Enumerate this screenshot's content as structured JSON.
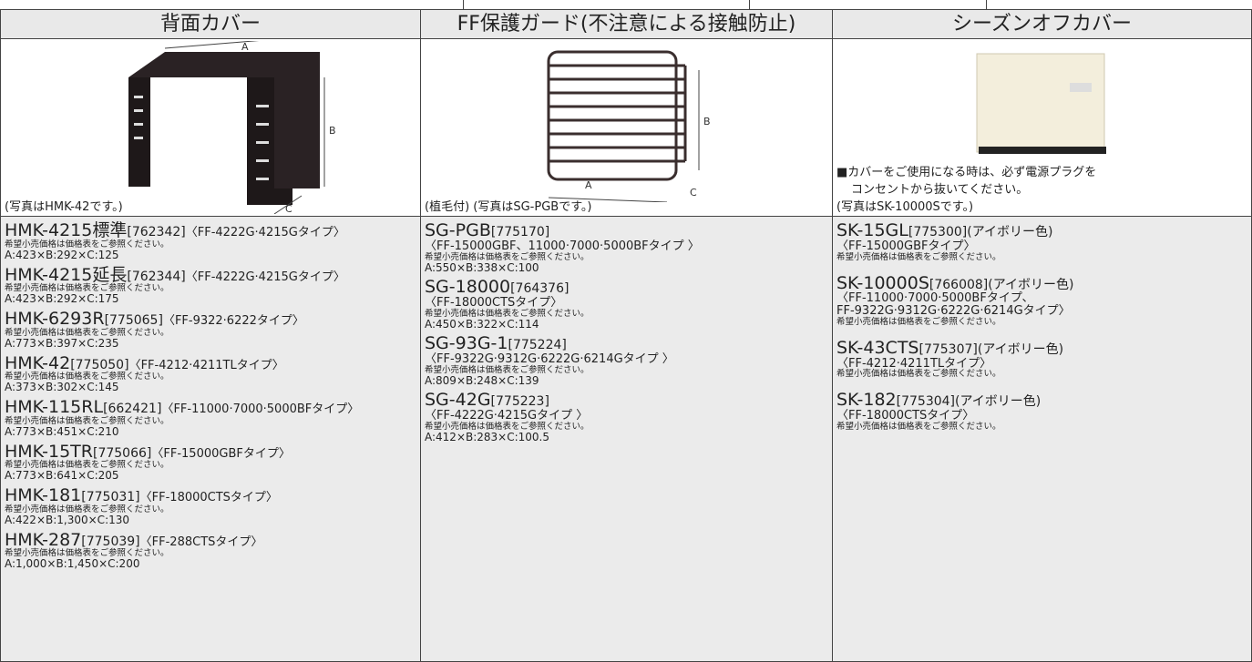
{
  "columns": [
    {
      "header": "背面カバー",
      "caption": "(写真はHMK-42です。)",
      "dim_labels": [
        "A",
        "B",
        "C"
      ],
      "items": [
        {
          "model": "HMK-4215標準",
          "code": "[762342]",
          "type": "〈FF-4222G·4215Gタイプ〉",
          "note": "希望小売価格は価格表をご参照ください。",
          "dims": "A:423×B:292×C:125"
        },
        {
          "model": "HMK-4215延長",
          "code": "[762344]",
          "type": "〈FF-4222G·4215Gタイプ〉",
          "note": "希望小売価格は価格表をご参照ください。",
          "dims": "A:423×B:292×C:175"
        },
        {
          "model": "HMK-6293R",
          "code": "[775065]",
          "type": "〈FF-9322·6222タイプ〉",
          "note": "希望小売価格は価格表をご参照ください。",
          "dims": "A:773×B:397×C:235"
        },
        {
          "model": "HMK-42",
          "code": "[775050]",
          "type": "〈FF-4212·4211TLタイプ〉",
          "note": "希望小売価格は価格表をご参照ください。",
          "dims": "A:373×B:302×C:145"
        },
        {
          "model": "HMK-115RL",
          "code": "[662421]",
          "type": "〈FF-11000·7000·5000BFタイプ〉",
          "note": "希望小売価格は価格表をご参照ください。",
          "dims": "A:773×B:451×C:210"
        },
        {
          "model": "HMK-15TR",
          "code": "[775066]",
          "type": "〈FF-15000GBFタイプ〉",
          "note": "希望小売価格は価格表をご参照ください。",
          "dims": "A:773×B:641×C:205"
        },
        {
          "model": "HMK-181",
          "code": "[775031]",
          "type": "〈FF-18000CTSタイプ〉",
          "note": "希望小売価格は価格表をご参照ください。",
          "dims": "A:422×B:1,300×C:130"
        },
        {
          "model": "HMK-287",
          "code": "[775039]",
          "type": "〈FF-288CTSタイプ〉",
          "note": "希望小売価格は価格表をご参照ください。",
          "dims": "A:1,000×B:1,450×C:200"
        }
      ]
    },
    {
      "header": "FF保護ガード(不注意による接触防止)",
      "caption": "(植毛付) (写真はSG-PGBです。)",
      "dim_labels": [
        "A",
        "B",
        "C"
      ],
      "items": [
        {
          "model": "SG-PGB",
          "code": "[775170]",
          "type": "〈FF-15000GBF、11000·7000·5000BFタイプ 〉",
          "note": "希望小売価格は価格表をご参照ください。",
          "dims": "A:550×B:338×C:100"
        },
        {
          "model": "SG-18000",
          "code": "[764376]",
          "type": "〈FF-18000CTSタイプ〉",
          "note": "希望小売価格は価格表をご参照ください。",
          "dims": "A:450×B:322×C:114"
        },
        {
          "model": "SG-93G-1",
          "code": "[775224]",
          "type": "〈FF-9322G·9312G·6222G·6214Gタイプ 〉",
          "note": "希望小売価格は価格表をご参照ください。",
          "dims": "A:809×B:248×C:139"
        },
        {
          "model": "SG-42G",
          "code": "[775223]",
          "type": "〈FF-4222G·4215Gタイプ 〉",
          "note": "希望小売価格は価格表をご参照ください。",
          "dims": "A:412×B:283×C:100.5"
        }
      ]
    },
    {
      "header": "シーズンオフカバー",
      "notice": [
        "■カバーをご使用になる時は、必ず電源プラグを",
        "コンセントから抜いてください。"
      ],
      "caption": "(写真はSK-10000Sです。)",
      "items": [
        {
          "model": "SK-15GL",
          "code": "[775300](アイボリー色)",
          "type": [
            "〈FF-15000GBFタイプ〉"
          ],
          "note": "希望小売価格は価格表をご参照ください。"
        },
        {
          "model": "SK-10000S",
          "code": "[766008](アイボリー色)",
          "type": [
            "〈FF-11000·7000·5000BFタイプ、",
            "FF-9322G·9312G·6222G·6214Gタイプ〉"
          ],
          "note": "希望小売価格は価格表をご参照ください。"
        },
        {
          "model": "SK-43CTS",
          "code": "[775307](アイボリー色)",
          "type": [
            "〈FF-4212·4211TLタイプ〉"
          ],
          "note": "希望小売価格は価格表をご参照ください。"
        },
        {
          "model": "SK-182",
          "code": "[775304](アイボリー色)",
          "type": [
            "〈FF-18000CTSタイプ〉"
          ],
          "note": "希望小売価格は価格表をご参照ください。"
        }
      ]
    }
  ]
}
